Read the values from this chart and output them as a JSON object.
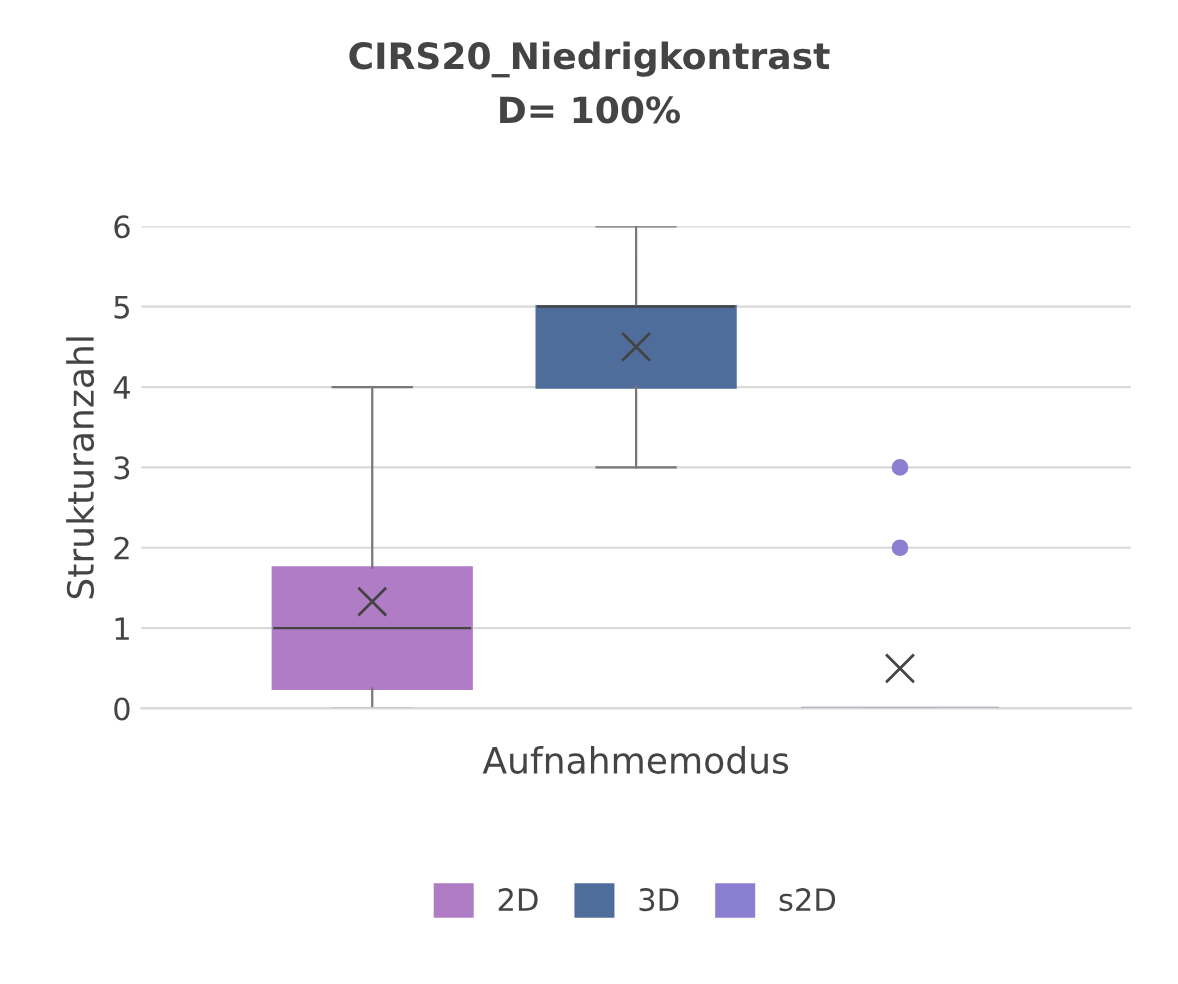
{
  "chart_data": {
    "type": "box",
    "title": "CIRS20_Niedrigkontrast",
    "subtitle": "D= 100%",
    "xlabel": "Aufnahmemodus",
    "ylabel": "Strukturanzahl",
    "categories": [
      null
    ],
    "series": [
      {
        "name": "2D",
        "color": "#b07cc6",
        "boxes": [
          {
            "low": 0,
            "q1": 0.25,
            "median": 1,
            "q3": 1.75,
            "high": 4,
            "mean": 1.33
          }
        ]
      },
      {
        "name": "3D",
        "color": "#4f6d9a",
        "boxes": [
          {
            "low": 3,
            "q1": 4,
            "median": 5,
            "q3": 5,
            "high": 6,
            "mean": 4.5
          }
        ]
      },
      {
        "name": "s2D",
        "color": "#8a7fd0",
        "boxes": [
          {
            "low": 0,
            "q1": 0,
            "median": 0,
            "q3": 0,
            "high": 0,
            "mean": 0.5,
            "outliers": [
              2,
              3
            ]
          }
        ]
      }
    ],
    "ylim": [
      0,
      6
    ],
    "yticks": [
      0,
      1,
      2,
      3,
      4,
      5,
      6
    ],
    "grid": "y",
    "legend": "bottom"
  }
}
